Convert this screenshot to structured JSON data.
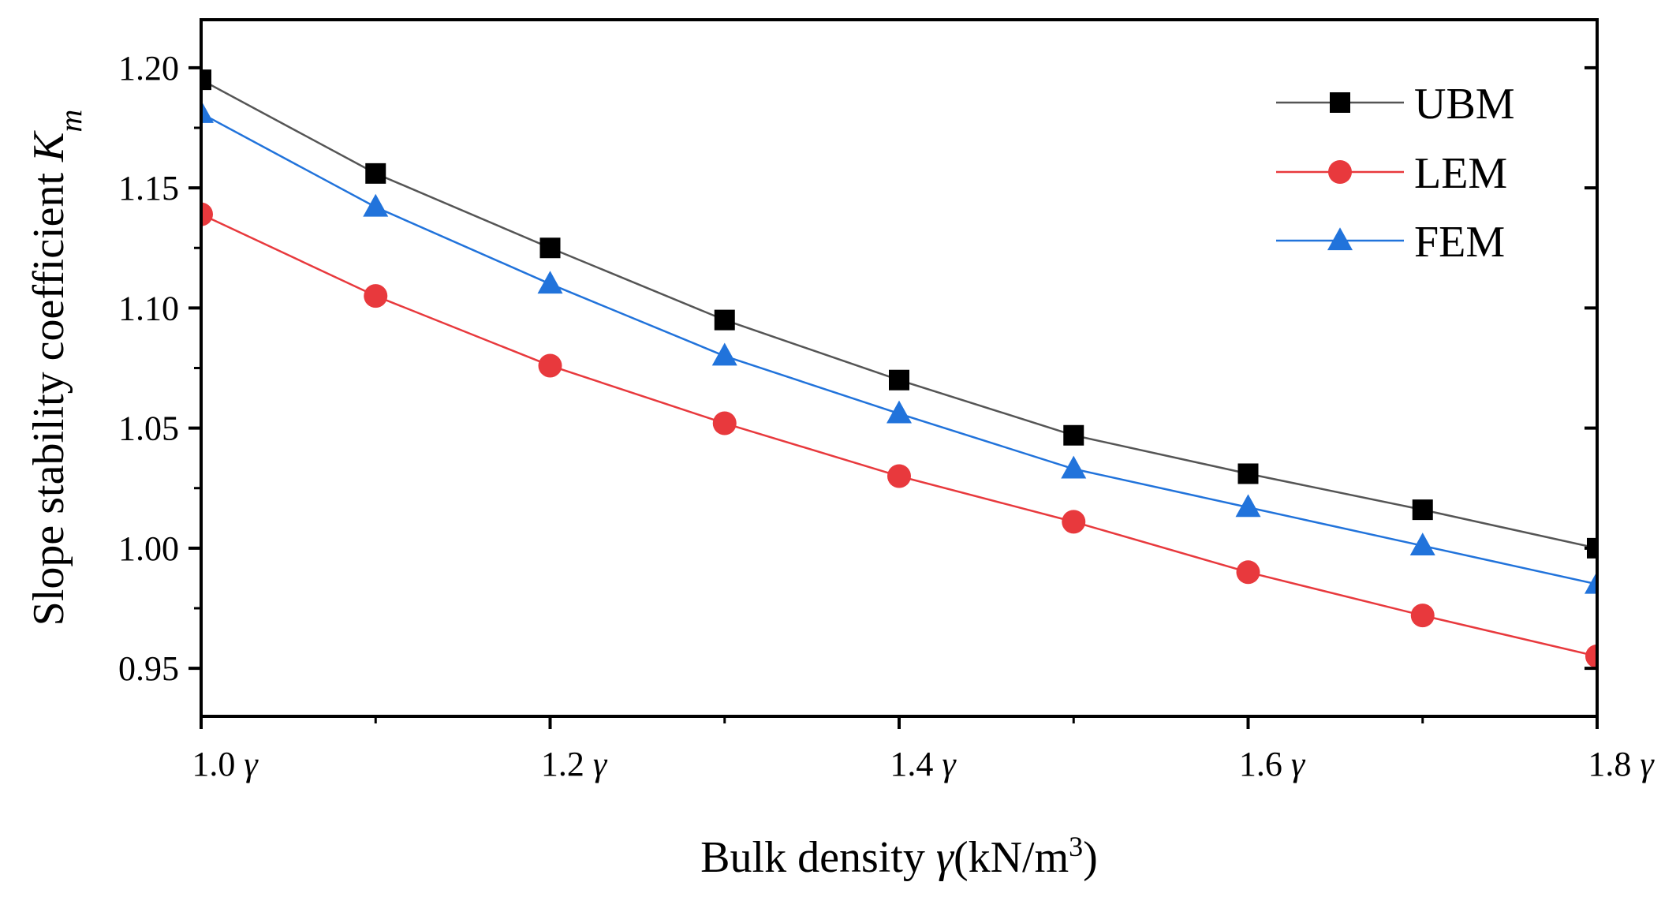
{
  "chart_data": {
    "type": "line",
    "xlabel": {
      "main": "Bulk density ",
      "symbol": "γ",
      "unit_pre": "(kN/m",
      "unit_sup": "3",
      "unit_post": ")"
    },
    "ylabel": {
      "main": "Slope stability coefficient ",
      "symbol": "K",
      "sub": "m"
    },
    "x": [
      1.0,
      1.1,
      1.2,
      1.3,
      1.4,
      1.5,
      1.6,
      1.7,
      1.8
    ],
    "xlim": [
      1.0,
      1.8
    ],
    "ylim": [
      0.93,
      1.22
    ],
    "x_ticks": [
      {
        "value": 1.0,
        "label": "1.0",
        "symbol": "γ"
      },
      {
        "value": 1.2,
        "label": "1.2",
        "symbol": "γ"
      },
      {
        "value": 1.4,
        "label": "1.4",
        "symbol": "γ"
      },
      {
        "value": 1.6,
        "label": "1.6",
        "symbol": "γ"
      },
      {
        "value": 1.8,
        "label": "1.8",
        "symbol": "γ"
      }
    ],
    "y_ticks": [
      {
        "value": 0.95,
        "label": "0.95"
      },
      {
        "value": 1.0,
        "label": "1.00"
      },
      {
        "value": 1.05,
        "label": "1.05"
      },
      {
        "value": 1.1,
        "label": "1.10"
      },
      {
        "value": 1.15,
        "label": "1.15"
      },
      {
        "value": 1.2,
        "label": "1.20"
      }
    ],
    "legend_position": "top-right",
    "series": [
      {
        "name": "UBM",
        "marker": "square",
        "line_color": "#555555",
        "marker_color": "#000000",
        "values": [
          1.195,
          1.156,
          1.125,
          1.095,
          1.07,
          1.047,
          1.031,
          1.016,
          1.0
        ]
      },
      {
        "name": "LEM",
        "marker": "circle",
        "line_color": "#e8393d",
        "marker_color": "#e8393d",
        "values": [
          1.139,
          1.105,
          1.076,
          1.052,
          1.03,
          1.011,
          0.99,
          0.972,
          0.955
        ]
      },
      {
        "name": "FEM",
        "marker": "triangle",
        "line_color": "#2173db",
        "marker_color": "#2173db",
        "values": [
          1.181,
          1.142,
          1.11,
          1.08,
          1.056,
          1.033,
          1.017,
          1.001,
          0.985
        ]
      }
    ]
  }
}
